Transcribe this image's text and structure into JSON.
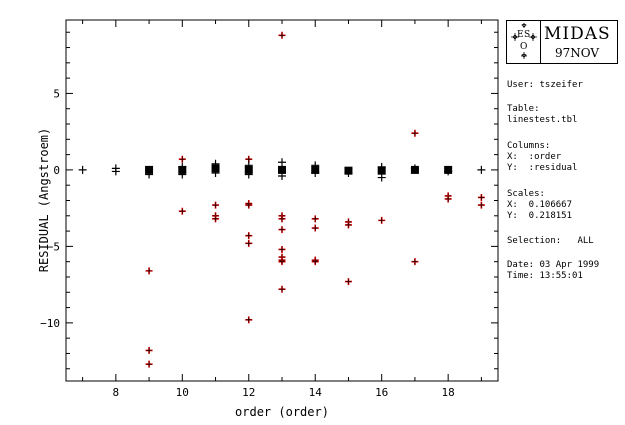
{
  "chart_data": {
    "type": "scatter",
    "title": "",
    "xlabel": "order (order)",
    "ylabel": "RESIDUAL (Angstroem)",
    "xlim": [
      6.5,
      19.5
    ],
    "ylim": [
      -13.8,
      9.8
    ],
    "xticks": [
      8,
      10,
      12,
      14,
      16,
      18
    ],
    "yticks": [
      5,
      0,
      -5,
      -10
    ],
    "ytick_labels": [
      "5",
      "0",
      "−5",
      "−10"
    ],
    "grid": false,
    "series": [
      {
        "marker": "red-plus",
        "color": "#cc0000",
        "x": [
          9,
          9,
          9,
          10,
          10,
          11,
          11,
          11,
          12,
          12,
          12,
          12,
          12,
          12,
          13,
          13,
          13,
          13,
          13,
          13,
          13,
          13,
          13,
          14,
          14,
          14,
          14,
          15,
          15,
          15,
          16,
          17,
          17,
          18,
          18,
          19,
          19
        ],
        "y": [
          -6.6,
          -11.8,
          -12.7,
          0.7,
          -2.7,
          -2.3,
          -3.0,
          -3.2,
          0.7,
          -2.2,
          -2.3,
          -4.3,
          -4.8,
          -9.8,
          8.8,
          -3.0,
          -3.2,
          -3.9,
          -5.2,
          -5.7,
          -5.9,
          -6.0,
          -7.8,
          -3.2,
          -3.8,
          -5.9,
          -6.0,
          -3.4,
          -3.6,
          -7.3,
          -3.3,
          2.4,
          -6.0,
          -1.7,
          -1.9,
          -1.8,
          -2.3
        ]
      },
      {
        "marker": "black-square",
        "color": "#000000",
        "x": [
          9,
          10,
          11,
          12,
          13,
          14,
          15,
          16,
          17,
          18
        ],
        "y": [
          0,
          0,
          0.1,
          0,
          0,
          0,
          -0.05,
          -0.05,
          0,
          0
        ]
      },
      {
        "marker": "black-plus",
        "color": "#000000",
        "x": [
          7,
          8,
          8,
          9,
          10,
          10,
          11,
          11,
          12,
          12,
          13,
          13,
          14,
          14,
          15,
          16,
          16,
          17,
          18,
          19
        ],
        "y": [
          0,
          0.1,
          -0.1,
          -0.3,
          0.2,
          -0.3,
          0.4,
          -0.2,
          0.3,
          -0.3,
          0.5,
          -0.4,
          0.3,
          -0.2,
          -0.2,
          0.2,
          -0.5,
          0.1,
          -0.1,
          0
        ]
      }
    ]
  },
  "logo": {
    "mark_e": "E",
    "mark_s": "S",
    "mark_o": "O",
    "name": "MIDAS",
    "version": "97NOV"
  },
  "info": {
    "user": "User: tszeifer",
    "table_label": "Table:",
    "table_value": "linestest.tbl",
    "columns_label": "Columns:",
    "columns_x": "X:  :order",
    "columns_y": "Y:  :residual",
    "scales_label": "Scales:",
    "scales_x": "X:  0.106667",
    "scales_y": "Y:  0.218151",
    "selection": "Selection:   ALL",
    "date": "Date: 03 Apr 1999",
    "time": "Time: 13:55:01"
  }
}
